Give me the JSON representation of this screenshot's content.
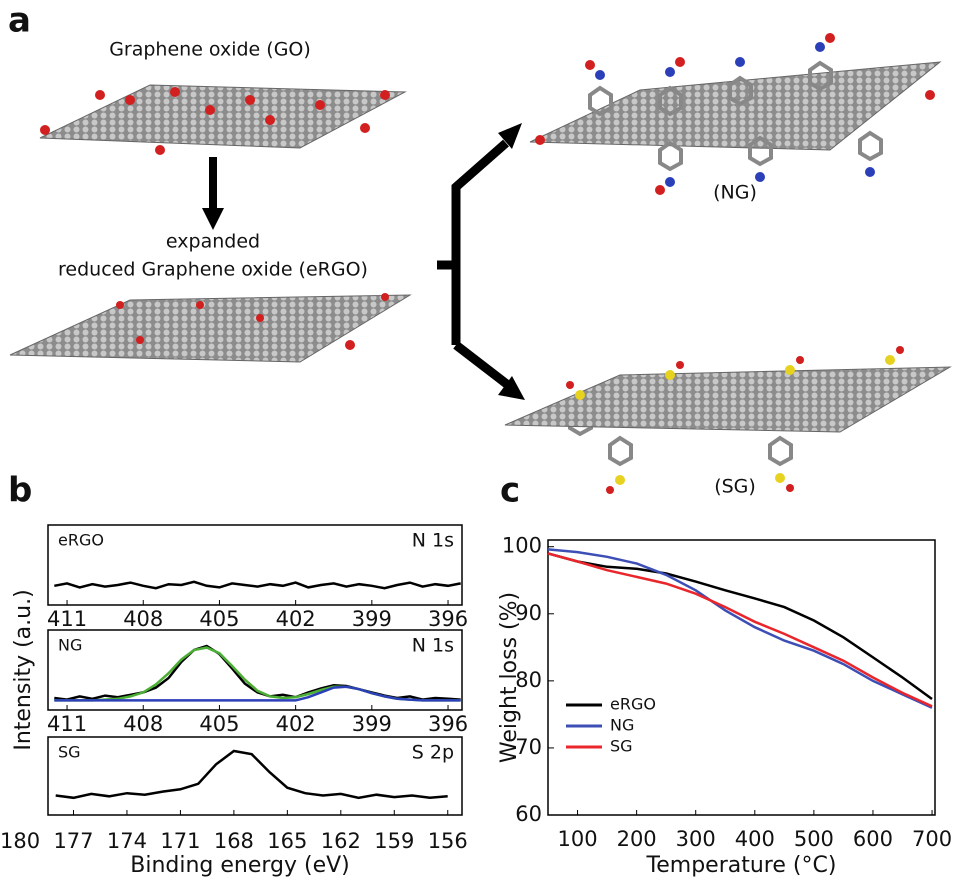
{
  "panel_labels": [
    "a",
    "b",
    "c"
  ],
  "panel_a": {
    "go": "Graphene oxide (GO)",
    "expanded": "expanded",
    "ergo": "reduced Graphene oxide (eRGO)",
    "ng": "(NG)",
    "sg": "(SG)"
  },
  "panel_b": {
    "xlabel": "Binding energy (eV)",
    "ylabel": "Intensity (a.u.)"
  },
  "chart_data": [
    {
      "type": "line",
      "annotation_left": "eRGO",
      "annotation_right": "N 1s",
      "x": [
        411.5,
        411,
        410.5,
        410,
        409.5,
        409,
        408.5,
        408,
        407.5,
        407,
        406.5,
        406,
        405.5,
        405,
        404.5,
        404,
        403.5,
        403,
        402.5,
        402,
        401.5,
        401,
        400.5,
        400,
        399.5,
        399,
        398.5,
        398,
        397.5,
        397,
        396.5,
        396,
        395.5
      ],
      "series": [
        {
          "color": "#000000",
          "values": [
            24,
            27,
            22,
            26,
            23,
            25,
            28,
            24,
            21,
            26,
            25,
            29,
            24,
            22,
            27,
            25,
            23,
            26,
            24,
            28,
            22,
            25,
            27,
            23,
            26,
            24,
            21,
            25,
            28,
            23,
            26,
            24,
            27
          ]
        }
      ],
      "xlim": [
        411.75,
        395.45
      ],
      "xticks": [
        411,
        408,
        405,
        402,
        399,
        396
      ],
      "ylim": [
        0,
        100
      ]
    },
    {
      "type": "line",
      "annotation_left": "NG",
      "annotation_right": "N 1s",
      "x": [
        411.5,
        411,
        410.5,
        410,
        409.5,
        409,
        408.5,
        408,
        407.5,
        407,
        406.5,
        406,
        405.5,
        405,
        404.5,
        404,
        403.5,
        403,
        402.5,
        402,
        401.5,
        401,
        400.5,
        400,
        399.5,
        399,
        398.5,
        398,
        397.5,
        397,
        396.5,
        396,
        395.5
      ],
      "series": [
        {
          "color": "#000000",
          "values": [
            15,
            13,
            17,
            14,
            18,
            16,
            19,
            22,
            28,
            40,
            60,
            75,
            80,
            70,
            52,
            33,
            22,
            17,
            19,
            16,
            22,
            27,
            31,
            30,
            26,
            22,
            18,
            15,
            17,
            13,
            15,
            14,
            13
          ]
        },
        {
          "color": "#4caf35",
          "values": [
            12,
            12,
            12,
            12,
            13,
            14,
            17,
            22,
            32,
            46,
            63,
            75,
            78,
            71,
            55,
            38,
            24,
            17,
            15,
            16,
            20,
            25,
            29,
            29,
            26,
            21,
            17,
            14,
            13,
            12,
            12,
            12,
            12
          ]
        },
        {
          "color": "#2b3fb8",
          "values": [
            12,
            12,
            12,
            12,
            12,
            12,
            12,
            12,
            12,
            12,
            12,
            12,
            12,
            12,
            12,
            12,
            12,
            12,
            12,
            12,
            16,
            22,
            28,
            29,
            26,
            21,
            17,
            14,
            13,
            12,
            12,
            12,
            12
          ]
        }
      ],
      "xlim": [
        411.75,
        395.45
      ],
      "xticks": [
        411,
        408,
        405,
        402,
        399,
        396
      ],
      "ylim": [
        0,
        100
      ]
    },
    {
      "type": "line",
      "annotation_left": "SG",
      "annotation_right": "S 2p",
      "x": [
        178,
        177,
        176,
        175,
        174,
        173,
        172,
        171,
        170,
        169,
        168,
        167,
        166,
        165,
        164,
        163,
        162,
        161,
        160,
        159,
        158,
        157,
        156
      ],
      "series": [
        {
          "color": "#000000",
          "values": [
            25,
            22,
            27,
            24,
            28,
            26,
            30,
            33,
            40,
            65,
            82,
            78,
            55,
            35,
            28,
            25,
            27,
            22,
            26,
            23,
            25,
            22,
            24
          ]
        }
      ],
      "xlim": [
        178.43,
        155.2
      ],
      "xticks": [
        180,
        177,
        174,
        171,
        168,
        165,
        162,
        159,
        156
      ],
      "ylim": [
        0,
        100
      ]
    },
    {
      "type": "line",
      "xlabel": "Temperature (°C)",
      "ylabel": "Weight loss (%)",
      "legend": "lower left",
      "x": [
        50,
        100,
        150,
        200,
        250,
        300,
        350,
        400,
        450,
        500,
        550,
        600,
        650,
        700
      ],
      "series": [
        {
          "name": "eRGO",
          "color": "#000000",
          "values": [
            99,
            97.8,
            97,
            96.7,
            96,
            94.8,
            93.5,
            92.3,
            91,
            89,
            86.5,
            83.5,
            80.5,
            77.3
          ]
        },
        {
          "name": "NG",
          "color": "#3d4fb5",
          "values": [
            99.6,
            99.2,
            98.5,
            97.5,
            95.8,
            93.5,
            90.5,
            88,
            86,
            84.5,
            82.5,
            80,
            78,
            76
          ]
        },
        {
          "name": "SG",
          "color": "#e8262b",
          "values": [
            99,
            97.8,
            96.5,
            95.5,
            94.5,
            93,
            91,
            88.8,
            87,
            85,
            83,
            80.5,
            78.2,
            76.2
          ]
        }
      ],
      "xlim": [
        50,
        705
      ],
      "xticks": [
        100,
        200,
        300,
        400,
        500,
        600,
        700
      ],
      "ylim": [
        60,
        101
      ],
      "yticks": [
        60,
        70,
        80,
        90,
        100
      ]
    }
  ]
}
